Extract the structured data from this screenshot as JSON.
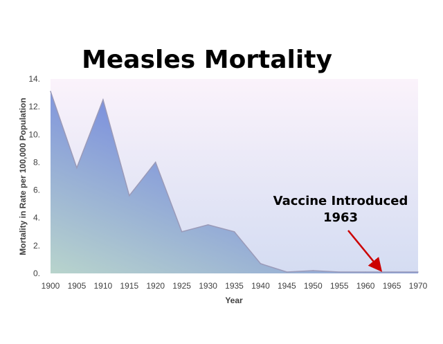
{
  "chart_data": {
    "type": "area",
    "title": "Measles Mortality",
    "xlabel": "Year",
    "ylabel": "Mortality in Rate per 100,000 Population",
    "x": [
      1900,
      1905,
      1910,
      1915,
      1920,
      1925,
      1930,
      1935,
      1940,
      1945,
      1950,
      1955,
      1960,
      1965,
      1970
    ],
    "x_tick_labels": [
      "1900",
      "1905",
      "1910",
      "1915",
      "1920",
      "1925",
      "1930",
      "1935",
      "1940",
      "1945",
      "1950",
      "1955",
      "1960",
      "1965",
      "1970"
    ],
    "series": [
      {
        "values": [
          13.1,
          7.6,
          12.5,
          5.6,
          8.0,
          3.0,
          3.5,
          3.0,
          0.7,
          0.1,
          0.2,
          0.1,
          0.1,
          0.1,
          0.1
        ]
      }
    ],
    "y_ticks": [
      0,
      2,
      4,
      6,
      8,
      10,
      12,
      14
    ],
    "y_tick_labels": [
      "0.",
      "2.",
      "4.",
      "6.",
      "8.",
      "10.",
      "12.",
      "14."
    ],
    "xlim": [
      1900,
      1970
    ],
    "ylim": [
      0,
      14
    ],
    "grid": false,
    "legend": "none",
    "colors": {
      "area_light": "#b8d4cc",
      "area_dark": "#7b8fde",
      "area_stroke": "#9a9ab8",
      "plot_bg_top": "#fbf3fb",
      "plot_bg_bottom": "#d4dcf2",
      "annotation_arrow": "#cc0000"
    },
    "annotation": {
      "line1": "Vaccine Introduced",
      "line2": "1963",
      "arrow_target_x": 1963,
      "arrow_target_y": 0.1
    }
  }
}
